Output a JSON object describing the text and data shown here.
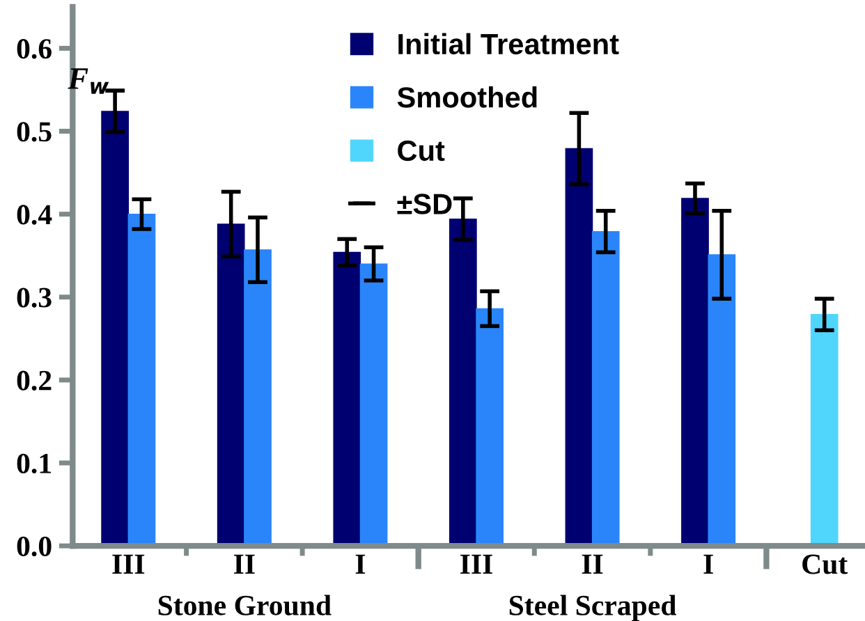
{
  "chart_data": {
    "type": "bar",
    "ylabel": "F$_{w}$",
    "categories": [
      "III",
      "II",
      "I",
      "III",
      "II",
      "I",
      "Cut"
    ],
    "series": [
      {
        "name": "Initial Treatment",
        "color": "#000070",
        "values": [
          0.524,
          0.388,
          0.354,
          0.394,
          0.479,
          0.419,
          null
        ],
        "errors": [
          0.025,
          0.039,
          0.016,
          0.025,
          0.043,
          0.018,
          null
        ]
      },
      {
        "name": "Smoothed",
        "color": "#2a85fa",
        "values": [
          0.4,
          0.357,
          0.34,
          0.286,
          0.379,
          0.351,
          null
        ],
        "errors": [
          0.018,
          0.039,
          0.02,
          0.021,
          0.025,
          0.053,
          null
        ]
      },
      {
        "name": "Cut",
        "color": "#50d6fc",
        "values": [
          null,
          null,
          null,
          null,
          null,
          null,
          0.279
        ],
        "errors": [
          null,
          null,
          null,
          null,
          null,
          null,
          0.019
        ]
      }
    ],
    "ylim": [
      0,
      0.65
    ],
    "yticks": [
      {
        "value": 0,
        "label": "0.0"
      },
      0.1,
      0.2,
      0.3,
      0.4,
      0.5,
      0.6
    ],
    "annotations": [
      "Stone Ground",
      "Steel Scraped",
      "±SD"
    ],
    "legend": "top",
    "grid": false
  }
}
